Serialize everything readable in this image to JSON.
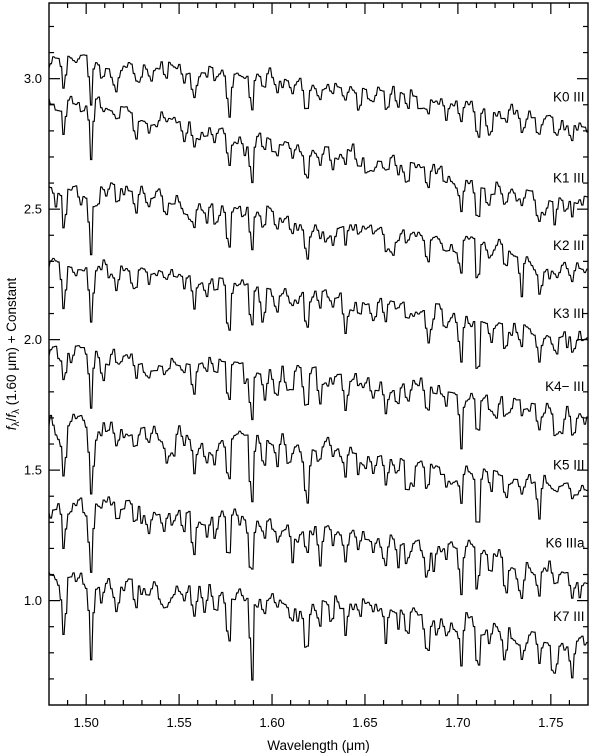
{
  "chart_data": {
    "type": "line",
    "title": "",
    "xlabel": "Wavelength (μm)",
    "ylabel": "fλ/fλ (1.60 μm) + Constant",
    "ylabel_parts": [
      {
        "t": "f",
        "italic": true
      },
      {
        "t": "λ",
        "sub": true
      },
      {
        "t": "/",
        "italic": false
      },
      {
        "t": "f",
        "italic": true
      },
      {
        "t": "λ",
        "sub": true
      },
      {
        "t": " (1.60 μm) + Constant",
        "italic": false
      }
    ],
    "xlim": [
      1.48,
      1.77
    ],
    "ylim": [
      0.6,
      3.29
    ],
    "x_major_ticks": [
      1.5,
      1.55,
      1.6,
      1.65,
      1.7,
      1.75
    ],
    "x_tick_labels": [
      "1.50",
      "1.55",
      "1.60",
      "1.65",
      "1.70",
      "1.75"
    ],
    "x_minor_step": 0.01,
    "y_major_ticks": [
      1.0,
      1.5,
      2.0,
      2.5,
      3.0
    ],
    "y_tick_labels": [
      "1.0",
      "1.5",
      "2.0",
      "2.5",
      "3.0"
    ],
    "y_minor_step": 0.1,
    "grid": false,
    "tick_style": "inward-all-four-sides",
    "legend_position": "right-inline-labels",
    "line_color": "#000000",
    "background": "#ffffff",
    "normalization_wavelength_um": 1.6,
    "series": [
      {
        "label": "K0 III",
        "offset_constant": 2.0,
        "v148": 3.08,
        "v160": 3.01,
        "v177": 2.82,
        "label_flux": 2.93,
        "seed": 101,
        "depth_scale": 0.75,
        "noise": 0.017
      },
      {
        "label": "K1 III",
        "offset_constant": 1.75,
        "v148": 2.92,
        "v160": 2.77,
        "v177": 2.51,
        "label_flux": 2.62,
        "seed": 202,
        "depth_scale": 0.85,
        "noise": 0.017
      },
      {
        "label": "K2 III",
        "offset_constant": 1.5,
        "v148": 2.58,
        "v160": 2.49,
        "v177": 2.26,
        "label_flux": 2.36,
        "seed": 303,
        "depth_scale": 0.9,
        "noise": 0.018
      },
      {
        "label": "K3 III",
        "offset_constant": 1.25,
        "v148": 2.28,
        "v160": 2.2,
        "v177": 1.99,
        "label_flux": 2.1,
        "seed": 404,
        "depth_scale": 0.95,
        "noise": 0.018
      },
      {
        "label": "K4− III",
        "offset_constant": 1.0,
        "v148": 1.95,
        "v160": 1.89,
        "v177": 1.7,
        "label_flux": 1.82,
        "seed": 505,
        "depth_scale": 1.0,
        "noise": 0.019
      },
      {
        "label": "K5 III",
        "offset_constant": 0.75,
        "v148": 1.67,
        "v160": 1.6,
        "v177": 1.42,
        "label_flux": 1.52,
        "seed": 606,
        "depth_scale": 1.05,
        "noise": 0.02
      },
      {
        "label": "K6 IIIa",
        "offset_constant": 0.5,
        "v148": 1.38,
        "v160": 1.31,
        "v177": 1.11,
        "label_flux": 1.22,
        "seed": 707,
        "depth_scale": 1.12,
        "noise": 0.021
      },
      {
        "label": "K7 III",
        "offset_constant": 0.25,
        "v148": 1.08,
        "v160": 1.02,
        "v177": 0.83,
        "label_flux": 0.94,
        "seed": 808,
        "depth_scale": 1.2,
        "noise": 0.021
      }
    ],
    "absorption_lines": [
      {
        "wl": 1.4885,
        "depth": 0.16
      },
      {
        "wl": 1.503,
        "depth": 0.2
      },
      {
        "wl": 1.517,
        "depth": 0.07
      },
      {
        "wl": 1.527,
        "depth": 0.08
      },
      {
        "wl": 1.534,
        "depth": 0.06
      },
      {
        "wl": 1.543,
        "depth": 0.06
      },
      {
        "wl": 1.553,
        "depth": 0.07
      },
      {
        "wl": 1.5582,
        "depth": 0.11
      },
      {
        "wl": 1.565,
        "depth": 0.06
      },
      {
        "wl": 1.57,
        "depth": 0.07
      },
      {
        "wl": 1.577,
        "depth": 0.17
      },
      {
        "wl": 1.5893,
        "depth": 0.21
      },
      {
        "wl": 1.596,
        "depth": 0.07
      },
      {
        "wl": 1.603,
        "depth": 0.06
      },
      {
        "wl": 1.611,
        "depth": 0.07
      },
      {
        "wl": 1.619,
        "depth": 0.15
      },
      {
        "wl": 1.626,
        "depth": 0.06
      },
      {
        "wl": 1.633,
        "depth": 0.06
      },
      {
        "wl": 1.64,
        "depth": 0.09
      },
      {
        "wl": 1.647,
        "depth": 0.05
      },
      {
        "wl": 1.655,
        "depth": 0.06
      },
      {
        "wl": 1.6615,
        "depth": 0.08
      },
      {
        "wl": 1.668,
        "depth": 0.06
      },
      {
        "wl": 1.673,
        "depth": 0.09
      },
      {
        "wl": 1.684,
        "depth": 0.1
      },
      {
        "wl": 1.694,
        "depth": 0.07
      },
      {
        "wl": 1.702,
        "depth": 0.16
      },
      {
        "wl": 1.711,
        "depth": 0.18
      },
      {
        "wl": 1.718,
        "depth": 0.06
      },
      {
        "wl": 1.726,
        "depth": 0.08
      },
      {
        "wl": 1.735,
        "depth": 0.06
      },
      {
        "wl": 1.744,
        "depth": 0.08
      },
      {
        "wl": 1.753,
        "depth": 0.06
      },
      {
        "wl": 1.762,
        "depth": 0.07
      }
    ]
  }
}
